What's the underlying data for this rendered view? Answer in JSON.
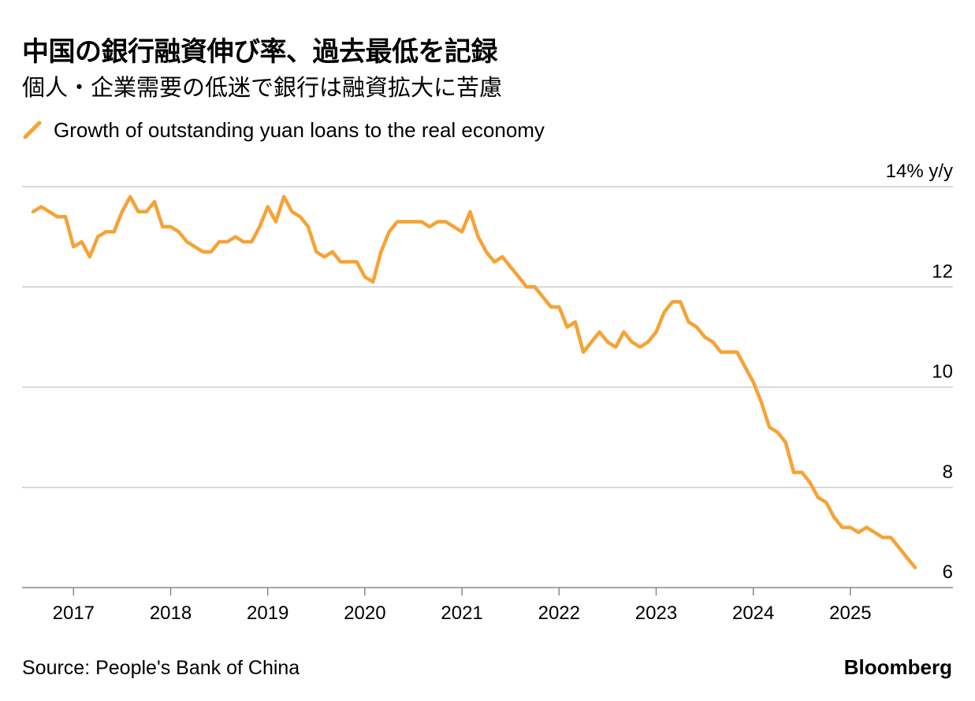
{
  "header": {
    "title": "中国の銀行融資伸び率、過去最低を記録",
    "subtitle": "個人・企業需要の低迷で銀行は融資拡大に苦慮"
  },
  "footer": {
    "source": "Source: People's Bank of China",
    "brand": "Bloomberg"
  },
  "colors": {
    "series": "#F7A235",
    "grid": "#cccccc",
    "axis": "#888888",
    "text": "#000000"
  },
  "chart_data": {
    "type": "line",
    "title": "中国の銀行融資伸び率、過去最低を記録",
    "subtitle": "個人・企業需要の低迷で銀行は融資拡大に苦慮",
    "ylabel": "14% y/y",
    "y_unit": "%",
    "ylim": [
      6,
      14
    ],
    "y_ticks": [
      14,
      12,
      10,
      8,
      6
    ],
    "y_tick_labels": [
      "14% y/y",
      "12",
      "10",
      "8",
      "6"
    ],
    "x_tick_labels": [
      "2017",
      "2018",
      "2019",
      "2020",
      "2021",
      "2022",
      "2023",
      "2024",
      "2025"
    ],
    "grid": true,
    "y_axis_position": "right",
    "legend_position": "top-left",
    "series": [
      {
        "name": "Growth of outstanding yuan loans to the real economy",
        "color": "#F7A235",
        "x": [
          "2016-08",
          "2016-09",
          "2016-10",
          "2016-11",
          "2016-12",
          "2017-01",
          "2017-02",
          "2017-03",
          "2017-04",
          "2017-05",
          "2017-06",
          "2017-07",
          "2017-08",
          "2017-09",
          "2017-10",
          "2017-11",
          "2017-12",
          "2018-01",
          "2018-02",
          "2018-03",
          "2018-04",
          "2018-05",
          "2018-06",
          "2018-07",
          "2018-08",
          "2018-09",
          "2018-10",
          "2018-11",
          "2018-12",
          "2019-01",
          "2019-02",
          "2019-03",
          "2019-04",
          "2019-05",
          "2019-06",
          "2019-07",
          "2019-08",
          "2019-09",
          "2019-10",
          "2019-11",
          "2019-12",
          "2020-01",
          "2020-02",
          "2020-03",
          "2020-04",
          "2020-05",
          "2020-06",
          "2020-07",
          "2020-08",
          "2020-09",
          "2020-10",
          "2020-11",
          "2020-12",
          "2021-01",
          "2021-02",
          "2021-03",
          "2021-04",
          "2021-05",
          "2021-06",
          "2021-07",
          "2021-08",
          "2021-09",
          "2021-10",
          "2021-11",
          "2021-12",
          "2022-01",
          "2022-02",
          "2022-03",
          "2022-04",
          "2022-05",
          "2022-06",
          "2022-07",
          "2022-08",
          "2022-09",
          "2022-10",
          "2022-11",
          "2022-12",
          "2023-01",
          "2023-02",
          "2023-03",
          "2023-04",
          "2023-05",
          "2023-06",
          "2023-07",
          "2023-08",
          "2023-09",
          "2023-10",
          "2023-11",
          "2023-12",
          "2024-01",
          "2024-02",
          "2024-03",
          "2024-04",
          "2024-05",
          "2024-06",
          "2024-07",
          "2024-08",
          "2024-09",
          "2024-10",
          "2024-11",
          "2024-12",
          "2025-01",
          "2025-02",
          "2025-03",
          "2025-04",
          "2025-05",
          "2025-06",
          "2025-07",
          "2025-08",
          "2025-09"
        ],
        "values": [
          13.5,
          13.6,
          13.5,
          13.4,
          13.4,
          12.8,
          12.9,
          12.6,
          13.0,
          13.1,
          13.1,
          13.5,
          13.8,
          13.5,
          13.5,
          13.7,
          13.2,
          13.2,
          13.1,
          12.9,
          12.8,
          12.7,
          12.7,
          12.9,
          12.9,
          13.0,
          12.9,
          12.9,
          13.2,
          13.6,
          13.3,
          13.8,
          13.5,
          13.4,
          13.2,
          12.7,
          12.6,
          12.7,
          12.5,
          12.5,
          12.5,
          12.2,
          12.1,
          12.7,
          13.1,
          13.3,
          13.3,
          13.3,
          13.3,
          13.2,
          13.3,
          13.3,
          13.2,
          13.1,
          13.5,
          13.0,
          12.7,
          12.5,
          12.6,
          12.4,
          12.2,
          12.0,
          12.0,
          11.8,
          11.6,
          11.6,
          11.2,
          11.3,
          10.7,
          10.9,
          11.1,
          10.9,
          10.8,
          11.1,
          10.9,
          10.8,
          10.9,
          11.1,
          11.5,
          11.7,
          11.7,
          11.3,
          11.2,
          11.0,
          10.9,
          10.7,
          10.7,
          10.7,
          10.4,
          10.1,
          9.7,
          9.2,
          9.1,
          8.9,
          8.3,
          8.3,
          8.1,
          7.8,
          7.7,
          7.4,
          7.2,
          7.2,
          7.1,
          7.2,
          7.1,
          7.0,
          7.0,
          6.8,
          6.6,
          6.4
        ]
      }
    ]
  }
}
